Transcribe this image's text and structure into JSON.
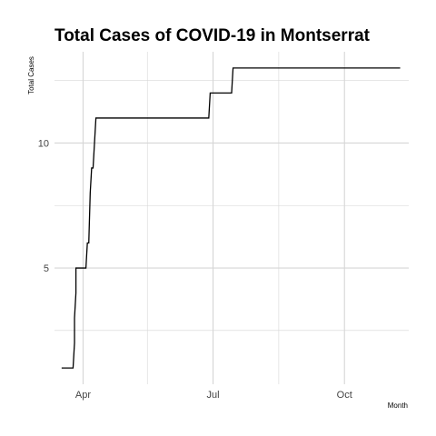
{
  "chart_data": {
    "type": "line",
    "title": "Total Cases of COVID-19 in Montserrat",
    "xlabel": "Month",
    "ylabel": "Total Cases",
    "line_color": "#000000",
    "grid_color": "#d6d6d6",
    "grid": true,
    "legend": "none",
    "x_ticks": [
      {
        "label": "Apr",
        "date": "2020-04-01"
      },
      {
        "label": "Jul",
        "date": "2020-07-01"
      },
      {
        "label": "Oct",
        "date": "2020-10-01"
      }
    ],
    "x_minor_ticks": [
      "2020-05-16",
      "2020-08-16"
    ],
    "y_ticks": [
      5,
      10
    ],
    "y_minor_ticks": [
      2.5,
      7.5,
      12.5
    ],
    "xlim": [
      "2020-03-12",
      "2020-11-15"
    ],
    "ylim": [
      0.35,
      13.65
    ],
    "series": [
      {
        "x": [
          "2020-03-17",
          "2020-03-25",
          "2020-03-26",
          "2020-03-26",
          "2020-03-27",
          "2020-03-27",
          "2020-03-28",
          "2020-03-31",
          "2020-04-01",
          "2020-04-03",
          "2020-04-04",
          "2020-04-05",
          "2020-04-06",
          "2020-04-07",
          "2020-04-08",
          "2020-04-09",
          "2020-04-10",
          "2020-04-11",
          "2020-06-28",
          "2020-06-29",
          "2020-07-14",
          "2020-07-15",
          "2020-11-09"
        ],
        "y": [
          1,
          1,
          2,
          3,
          4,
          5,
          5,
          5,
          5,
          5,
          6,
          6,
          8,
          9,
          9,
          10,
          11,
          11,
          11,
          12,
          12,
          13,
          13
        ]
      }
    ]
  }
}
